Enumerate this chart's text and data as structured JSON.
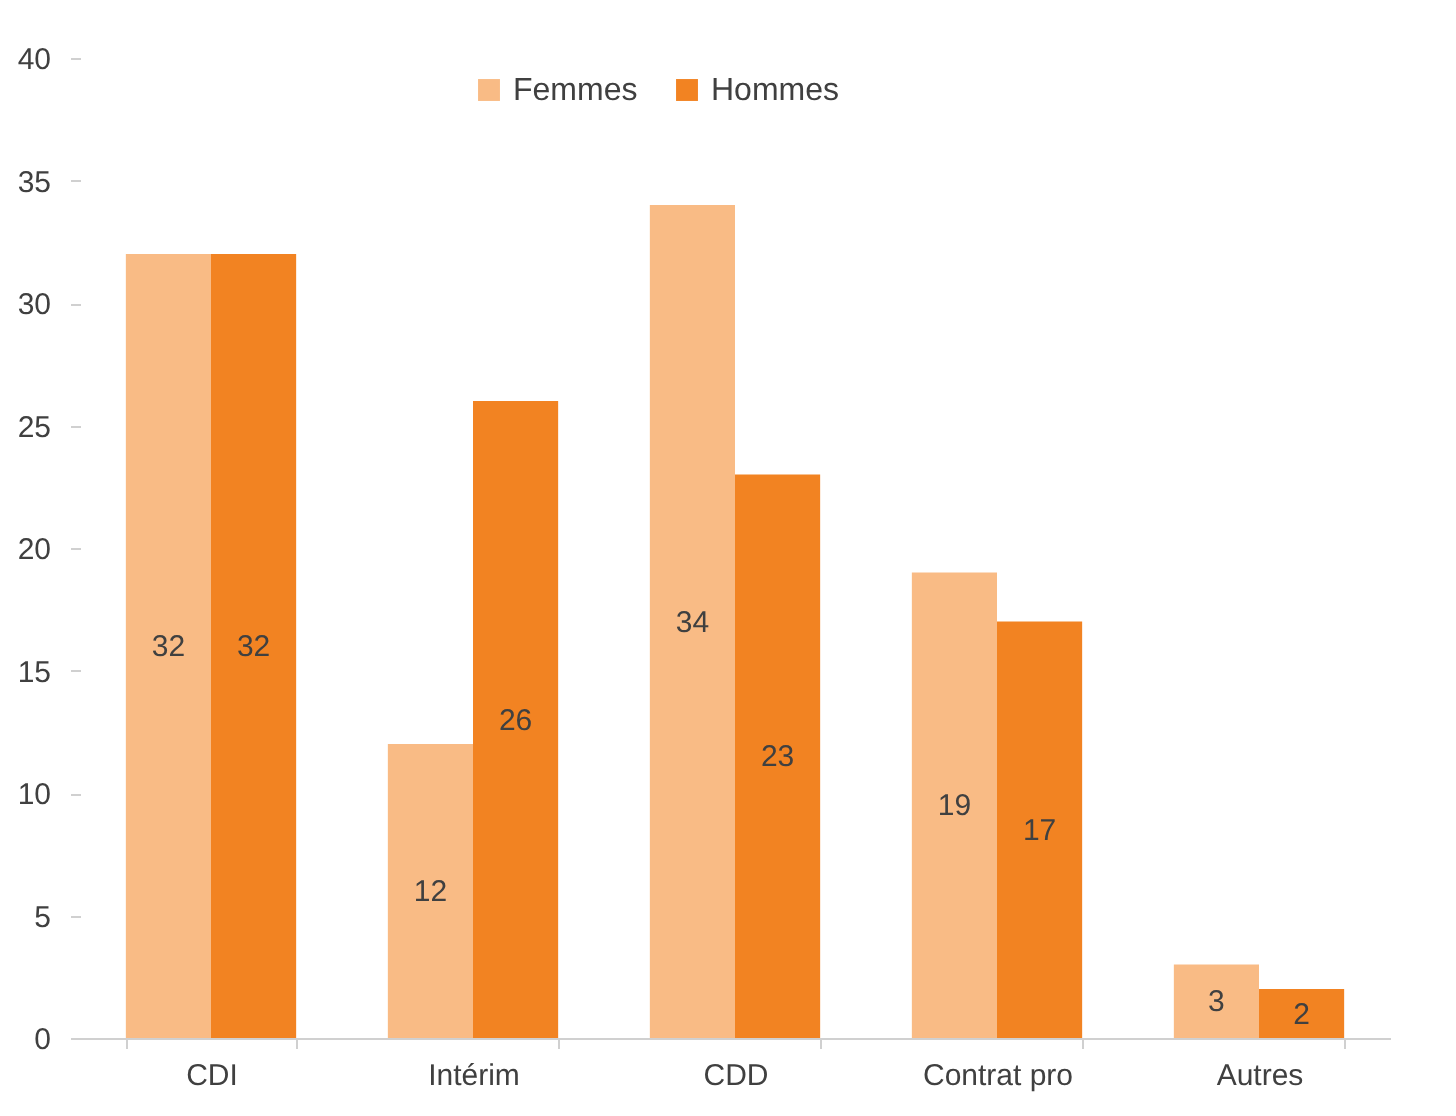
{
  "chart_data": {
    "type": "bar",
    "categories": [
      "CDI",
      "Intérim",
      "CDD",
      "Contrat pro",
      "Autres"
    ],
    "series": [
      {
        "name": "Femmes",
        "color": "#f9bb85",
        "values": [
          32,
          12,
          34,
          19,
          3
        ]
      },
      {
        "name": "Hommes",
        "color": "#f28322",
        "values": [
          32,
          26,
          23,
          17,
          2
        ]
      }
    ],
    "ylim": [
      0,
      40
    ],
    "yticks": [
      0,
      5,
      10,
      15,
      20,
      25,
      30,
      35,
      40
    ],
    "grid": false,
    "legend": "top",
    "data_labels": true
  }
}
